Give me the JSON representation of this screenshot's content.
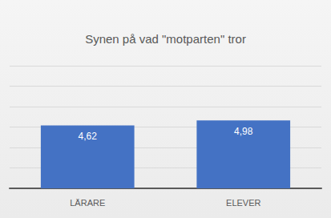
{
  "chart_data": {
    "type": "bar",
    "title": "Synen på vad \"motparten\" tror",
    "categories": [
      "LÄRARE",
      "ELEVER"
    ],
    "values": [
      4.62,
      4.98
    ],
    "value_labels": [
      "4,62",
      "4,98"
    ],
    "color": "#4472c4",
    "ylim": [
      0,
      9
    ],
    "yticks": [
      0,
      1.5,
      3,
      4.5,
      6,
      7.5,
      9
    ],
    "grid": true,
    "data_labels": true,
    "tick_labels": "x"
  }
}
